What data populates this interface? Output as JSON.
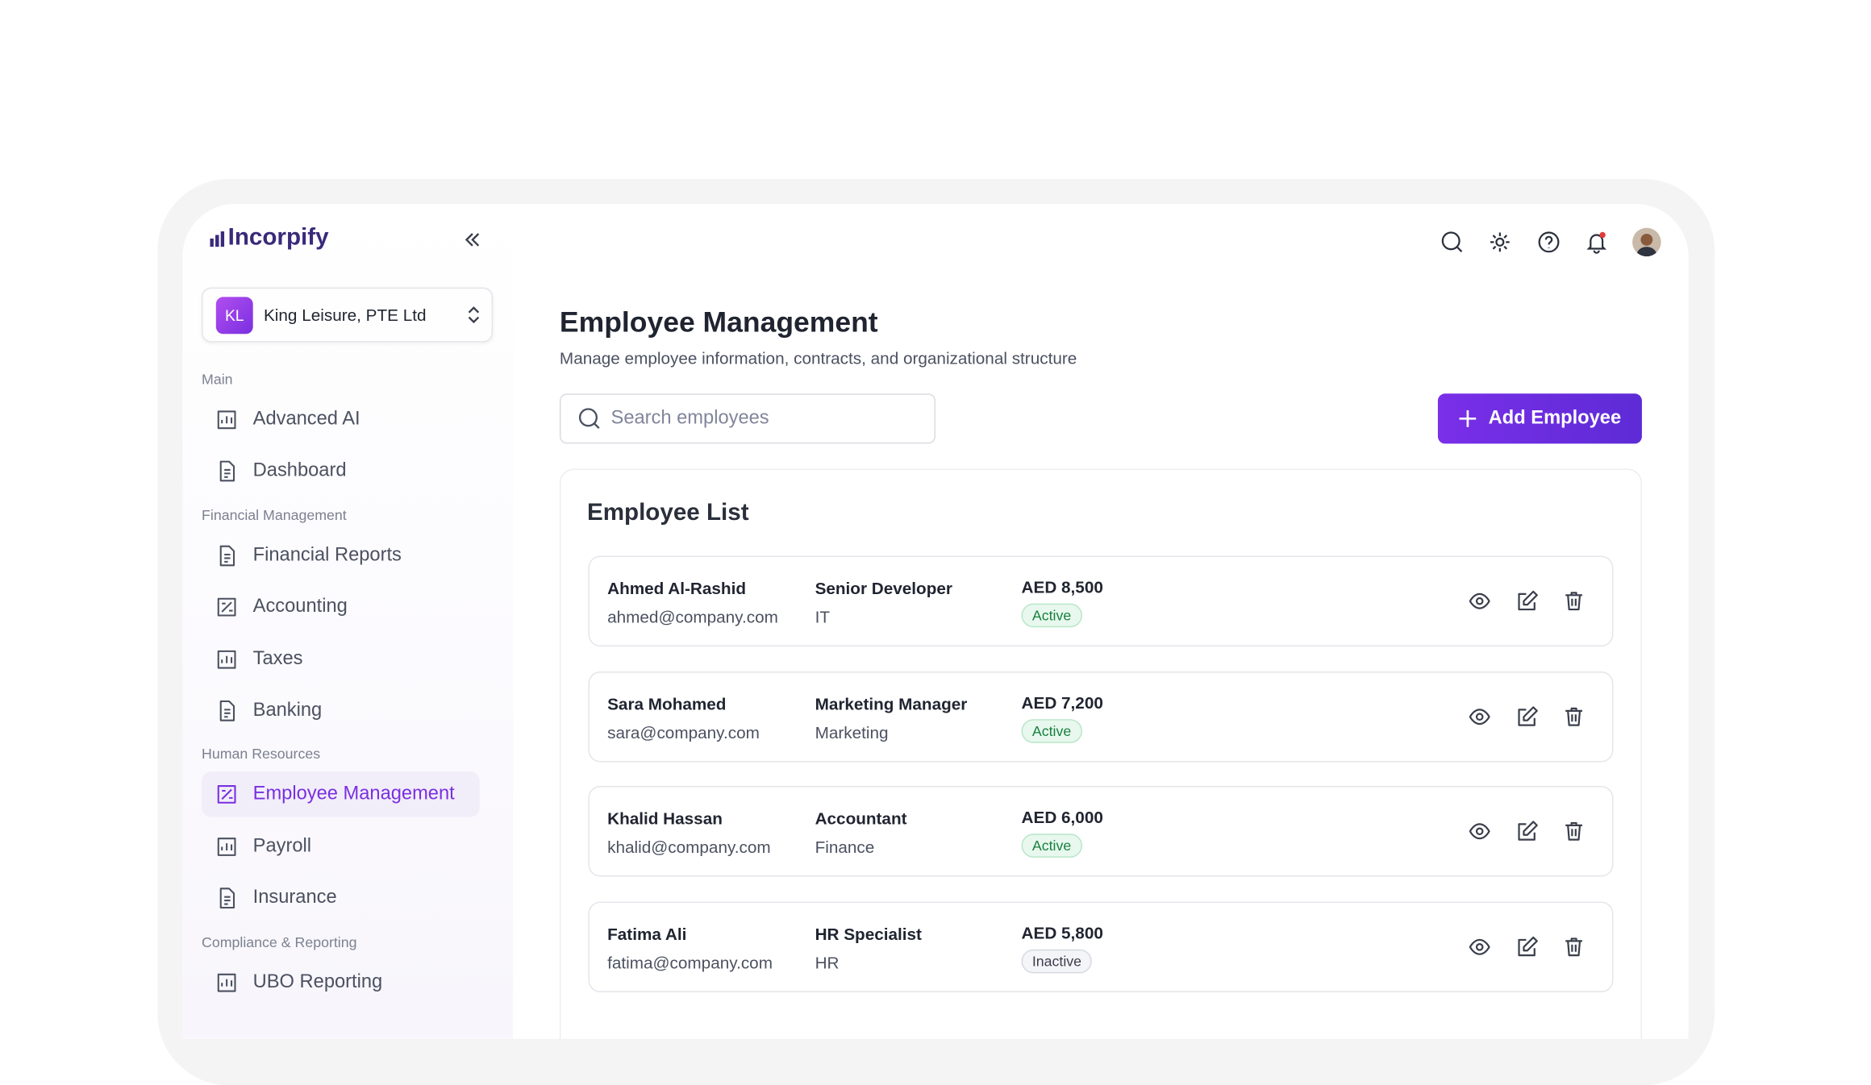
{
  "brand": "Incorpify",
  "company": {
    "initials": "KL",
    "name": "King Leisure, PTE Ltd"
  },
  "nav": [
    {
      "section": "Main",
      "items": [
        "Advanced AI",
        "Dashboard"
      ]
    },
    {
      "section": "Financial Management",
      "items": [
        "Financial Reports",
        "Accounting",
        "Taxes",
        "Banking"
      ]
    },
    {
      "section": "Human Resources",
      "items": [
        "Employee Management",
        "Payroll",
        "Insurance"
      ]
    },
    {
      "section": "Compliance & Reporting",
      "items": [
        "UBO Reporting"
      ]
    }
  ],
  "header": {
    "title": "Employee Management",
    "subtitle": "Manage employee information, contracts, and organizational structure"
  },
  "search_placeholder": "Search employees",
  "add_button": "Add Employee",
  "list": {
    "title": "Employee List",
    "rows": [
      {
        "name": "Ahmed Al-Rashid",
        "email": "ahmed@company.com",
        "role": "Senior Developer",
        "department": "IT",
        "salary": "AED 8,500",
        "status": "Active"
      },
      {
        "name": "Sara Mohamed",
        "email": "sara@company.com",
        "role": "Marketing Manager",
        "department": "Marketing",
        "salary": "AED 7,200",
        "status": "Active"
      },
      {
        "name": "Khalid Hassan",
        "email": "khalid@company.com",
        "role": "Accountant",
        "department": "Finance",
        "salary": "AED 6,000",
        "status": "Active"
      },
      {
        "name": "Fatima Ali",
        "email": "fatima@company.com",
        "role": "HR Specialist",
        "department": "HR",
        "salary": "AED 5,800",
        "status": "Inactive"
      }
    ]
  }
}
